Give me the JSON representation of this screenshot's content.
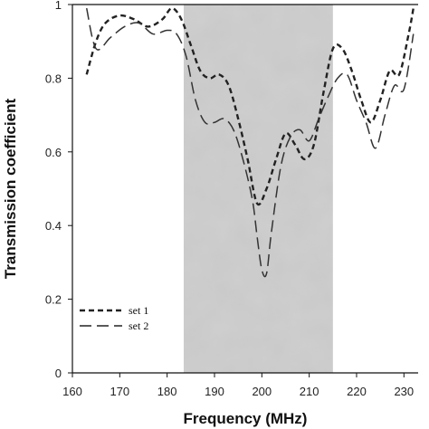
{
  "chart_data": {
    "type": "line",
    "title": "",
    "xlabel": "Frequency (MHz)",
    "ylabel": "Transmission coefficient",
    "xlim": [
      160,
      233
    ],
    "ylim": [
      0,
      1
    ],
    "xticks": [
      160,
      170,
      180,
      190,
      200,
      210,
      220,
      230
    ],
    "xtick_labels": [
      "160",
      "170",
      "180",
      "190",
      "200",
      "210",
      "220",
      "230"
    ],
    "yticks": [
      0,
      0.2,
      0.4,
      0.6,
      0.8,
      1
    ],
    "ytick_labels": [
      "0",
      "0.2",
      "0.4",
      "0.6",
      "0.8",
      "1"
    ],
    "grid": false,
    "legend_position": "bottom-left",
    "shaded_region": {
      "x_start": 183.5,
      "x_end": 215
    },
    "series": [
      {
        "name": "set 1",
        "style": "short-dash",
        "color": "#222222",
        "x": [
          163,
          165,
          167,
          170,
          173,
          176,
          179,
          181,
          183,
          185,
          187,
          189,
          191,
          193,
          195,
          197,
          199,
          201,
          203,
          205,
          207,
          209,
          211,
          213,
          215,
          217,
          219,
          221,
          223,
          225,
          227,
          229,
          231,
          232
        ],
        "y": [
          0.81,
          0.9,
          0.95,
          0.97,
          0.96,
          0.94,
          0.96,
          0.99,
          0.96,
          0.89,
          0.82,
          0.8,
          0.81,
          0.78,
          0.69,
          0.58,
          0.46,
          0.5,
          0.58,
          0.65,
          0.62,
          0.58,
          0.62,
          0.76,
          0.88,
          0.88,
          0.82,
          0.74,
          0.68,
          0.74,
          0.82,
          0.81,
          0.92,
          0.99
        ]
      },
      {
        "name": "set 2",
        "style": "long-dash",
        "color": "#333333",
        "x": [
          163,
          165,
          168,
          171,
          174,
          177,
          180,
          182,
          184,
          186,
          188,
          190,
          192,
          194,
          196,
          198,
          199,
          200,
          201,
          202,
          204,
          206,
          208,
          210,
          212,
          214,
          216,
          218,
          220,
          222,
          224,
          226,
          228,
          230,
          232
        ],
        "y": [
          0.99,
          0.88,
          0.91,
          0.94,
          0.95,
          0.92,
          0.93,
          0.92,
          0.86,
          0.74,
          0.68,
          0.68,
          0.69,
          0.66,
          0.58,
          0.47,
          0.37,
          0.28,
          0.27,
          0.38,
          0.56,
          0.64,
          0.66,
          0.63,
          0.69,
          0.75,
          0.8,
          0.81,
          0.74,
          0.68,
          0.61,
          0.7,
          0.78,
          0.77,
          0.92
        ]
      }
    ],
    "legend": [
      {
        "label": "set 1",
        "style": "short-dash"
      },
      {
        "label": "set 2",
        "style": "long-dash"
      }
    ]
  }
}
